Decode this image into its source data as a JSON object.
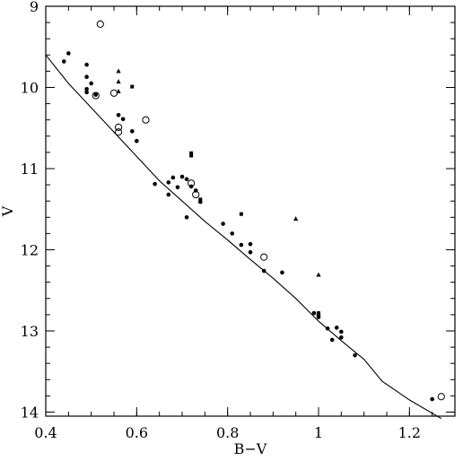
{
  "chart_data": {
    "type": "scatter",
    "title": "",
    "xlabel": "B−V",
    "ylabel": "V",
    "xlim": [
      0.4,
      1.3
    ],
    "ylim": [
      14.05,
      9.0
    ],
    "y_inverted": true,
    "grid": false,
    "x_ticks": [
      {
        "value": 0.4,
        "label": "0.4"
      },
      {
        "value": 0.6,
        "label": "0.6"
      },
      {
        "value": 0.8,
        "label": "0.8"
      },
      {
        "value": 1.0,
        "label": "1"
      },
      {
        "value": 1.2,
        "label": "1.2"
      }
    ],
    "y_ticks": [
      {
        "value": 9,
        "label": "9"
      },
      {
        "value": 10,
        "label": "10"
      },
      {
        "value": 11,
        "label": "11"
      },
      {
        "value": 12,
        "label": "12"
      },
      {
        "value": 13,
        "label": "13"
      },
      {
        "value": 14,
        "label": "14"
      }
    ],
    "x_minor_step": 0.05,
    "y_minor_step": 0.2,
    "line": {
      "x": [
        0.4,
        0.45,
        0.5,
        0.55,
        0.6,
        0.65,
        0.7,
        0.75,
        0.8,
        0.85,
        0.9,
        0.95,
        1.0,
        1.05,
        1.1,
        1.14,
        1.2,
        1.27
      ],
      "y": [
        9.6,
        9.95,
        10.25,
        10.55,
        10.85,
        11.15,
        11.4,
        11.65,
        11.88,
        12.12,
        12.35,
        12.6,
        12.88,
        13.12,
        13.35,
        13.62,
        13.85,
        14.08
      ]
    },
    "series": [
      {
        "marker": "filled-circle",
        "x": [
          0.44,
          0.45,
          0.49,
          0.49,
          0.49,
          0.5,
          0.49,
          0.51,
          0.56,
          0.57,
          0.59,
          0.6,
          0.64,
          0.67,
          0.67,
          0.68,
          0.69,
          0.7,
          0.71,
          0.72,
          0.73,
          0.74,
          0.71,
          0.79,
          0.81,
          0.83,
          0.85,
          0.85,
          0.88,
          0.92,
          0.99,
          1.0,
          1.0,
          1.02,
          1.04,
          1.05,
          1.05,
          1.03,
          1.08,
          1.25
        ],
        "y": [
          9.68,
          9.58,
          9.72,
          9.87,
          10.02,
          9.95,
          10.06,
          10.09,
          10.34,
          10.39,
          10.54,
          10.66,
          11.19,
          11.17,
          11.32,
          11.11,
          11.23,
          11.1,
          11.13,
          11.22,
          11.27,
          11.41,
          11.6,
          11.68,
          11.8,
          11.94,
          11.93,
          12.03,
          12.26,
          12.28,
          12.78,
          12.8,
          12.83,
          12.97,
          12.96,
          13.01,
          13.08,
          13.11,
          13.3,
          13.84
        ]
      },
      {
        "marker": "open-circle",
        "x": [
          0.52,
          0.51,
          0.55,
          0.56,
          0.56,
          0.62,
          0.72,
          0.73,
          0.88,
          1.27
        ],
        "y": [
          9.22,
          10.1,
          10.07,
          10.49,
          10.55,
          10.4,
          11.18,
          11.32,
          12.09,
          13.81
        ]
      },
      {
        "marker": "filled-square",
        "x": [
          0.59,
          0.72,
          0.72,
          0.74,
          0.83,
          1.0
        ],
        "y": [
          9.99,
          10.81,
          10.84,
          11.38,
          11.56,
          12.78
        ]
      },
      {
        "marker": "filled-triangle",
        "x": [
          0.56,
          0.56,
          0.56,
          0.95,
          1.0
        ],
        "y": [
          9.8,
          9.93,
          10.05,
          11.62,
          12.31
        ]
      }
    ]
  }
}
